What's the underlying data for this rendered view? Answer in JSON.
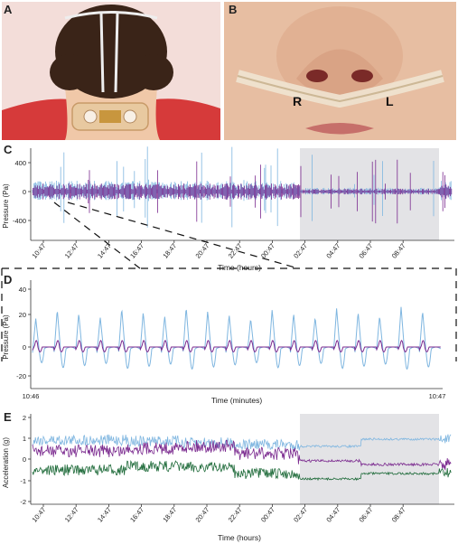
{
  "panels": {
    "a": {
      "letter": "A"
    },
    "b": {
      "letter": "B",
      "nostril_right": "R",
      "nostril_left": "L"
    },
    "c": {
      "letter": "C"
    },
    "d": {
      "letter": "D"
    },
    "e": {
      "letter": "E"
    }
  },
  "chart_c": {
    "ylabel": "Pressure (Pa)",
    "xlabel": "Time (hours)",
    "y_ticks": [
      "400",
      "0",
      "-400"
    ],
    "x_ticks": [
      "10:47",
      "12:47",
      "14:47",
      "16:47",
      "18:47",
      "20:47",
      "22:47",
      "00:47",
      "02:47",
      "04:47",
      "06:47",
      "08:47"
    ]
  },
  "chart_d": {
    "ylabel": "Pressure (Pa)",
    "xlabel": "Time (minutes)",
    "y_ticks": [
      "40",
      "20",
      "0",
      "-20"
    ],
    "x_start": "10:46",
    "x_end": "10:47"
  },
  "chart_e": {
    "ylabel": "Acceleration (g)",
    "xlabel": "Time (hours)",
    "y_ticks": [
      "2",
      "1",
      "0",
      "-1",
      "-2"
    ],
    "x_ticks": [
      "10:47",
      "12:47",
      "14:47",
      "16:47",
      "18:47",
      "20:47",
      "22:47",
      "00:47",
      "02:47",
      "04:47",
      "06:47",
      "08:47"
    ]
  },
  "colors": {
    "light_blue": "#7fb6e0",
    "purple": "#7b2a8f",
    "green": "#1f6b3a",
    "shade": "#e3e3e6"
  }
}
